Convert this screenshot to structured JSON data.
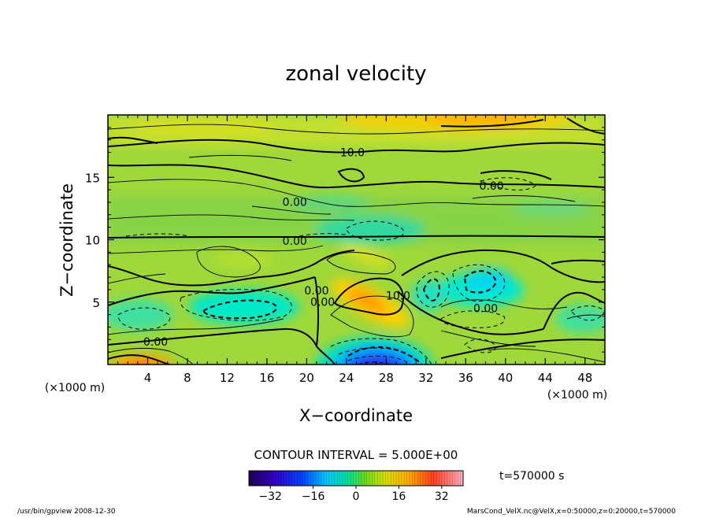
{
  "chart_data": {
    "type": "heatmap",
    "title": "zonal velocity",
    "xlabel": "X−coordinate",
    "ylabel": "Z−coordinate",
    "x_unit": "(×1000 m)",
    "y_unit": "(×1000 m)",
    "xlim": [
      0,
      50
    ],
    "ylim": [
      0,
      20
    ],
    "x_ticks": [
      4,
      8,
      12,
      16,
      20,
      24,
      28,
      32,
      36,
      40,
      44,
      48
    ],
    "y_ticks": [
      5,
      10,
      15
    ],
    "contour_interval_text": "CONTOUR INTERVAL = 5.000E+00",
    "time_text": "t=570000 s",
    "colorbar": {
      "range": [
        -40,
        40
      ],
      "ticks": [
        -32,
        -16,
        0,
        16,
        32
      ]
    },
    "contour_labels": [
      {
        "text": "10.0",
        "x": 24.6,
        "y": 16.7
      },
      {
        "text": "0.00",
        "x": 38.6,
        "y": 14.0
      },
      {
        "text": "0.00",
        "x": 18.8,
        "y": 12.7
      },
      {
        "text": "0.00",
        "x": 18.8,
        "y": 9.6
      },
      {
        "text": "0.00",
        "x": 21.0,
        "y": 5.6
      },
      {
        "text": "0.00",
        "x": 21.6,
        "y": 4.7
      },
      {
        "text": "10.0",
        "x": 29.2,
        "y": 5.2
      },
      {
        "text": "0.00",
        "x": 38.0,
        "y": 4.2
      },
      {
        "text": "0.00",
        "x": 4.8,
        "y": 1.5
      }
    ],
    "features": [
      {
        "kind": "max",
        "x": 25.5,
        "y": 5.2,
        "value": 16
      },
      {
        "kind": "max",
        "x": 26.5,
        "y": 7.8,
        "value": 10
      },
      {
        "kind": "max",
        "x": 35,
        "y": 19.8,
        "value": 12
      },
      {
        "kind": "max",
        "x": 5,
        "y": 0.2,
        "value": 18
      },
      {
        "kind": "min",
        "x": 28,
        "y": 0.6,
        "value": -38
      },
      {
        "kind": "min",
        "x": 38.5,
        "y": 6.3,
        "value": -9
      },
      {
        "kind": "min",
        "x": 14,
        "y": 5.2,
        "value": -7
      },
      {
        "kind": "min",
        "x": 33.5,
        "y": 5.5,
        "value": -6
      },
      {
        "kind": "min",
        "x": 27,
        "y": 10.5,
        "value": -4
      }
    ]
  },
  "footer": {
    "left": "/usr/bin/gpview   2008-12-30",
    "right": "MarsCond_VelX.nc@VelX,x=0:50000,z=0:20000,t=570000"
  }
}
